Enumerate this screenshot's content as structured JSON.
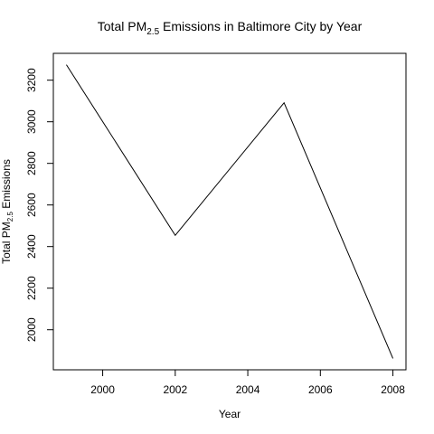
{
  "chart_data": {
    "type": "line",
    "title": {
      "prefix": "Total PM",
      "subscript": "2.5",
      "suffix": " Emissions in Baltimore City by Year"
    },
    "xlabel": "Year",
    "ylabel": {
      "prefix": "Total PM",
      "subscript": "2.5",
      "suffix": " Emissions"
    },
    "x": [
      1999,
      2002,
      2005,
      2008
    ],
    "series": [
      {
        "values": [
          3274.18,
          2453.92,
          3091.35,
          1862.28
        ]
      }
    ],
    "xlim": [
      1998.64,
      2008.36
    ],
    "ylim": [
      1807.44,
      3329.02
    ],
    "x_ticks": [
      2000,
      2002,
      2004,
      2006,
      2008
    ],
    "y_ticks": [
      2000,
      2200,
      2400,
      2600,
      2800,
      3000,
      3200
    ],
    "line_color": "#000000",
    "grid": false,
    "legend": false
  }
}
